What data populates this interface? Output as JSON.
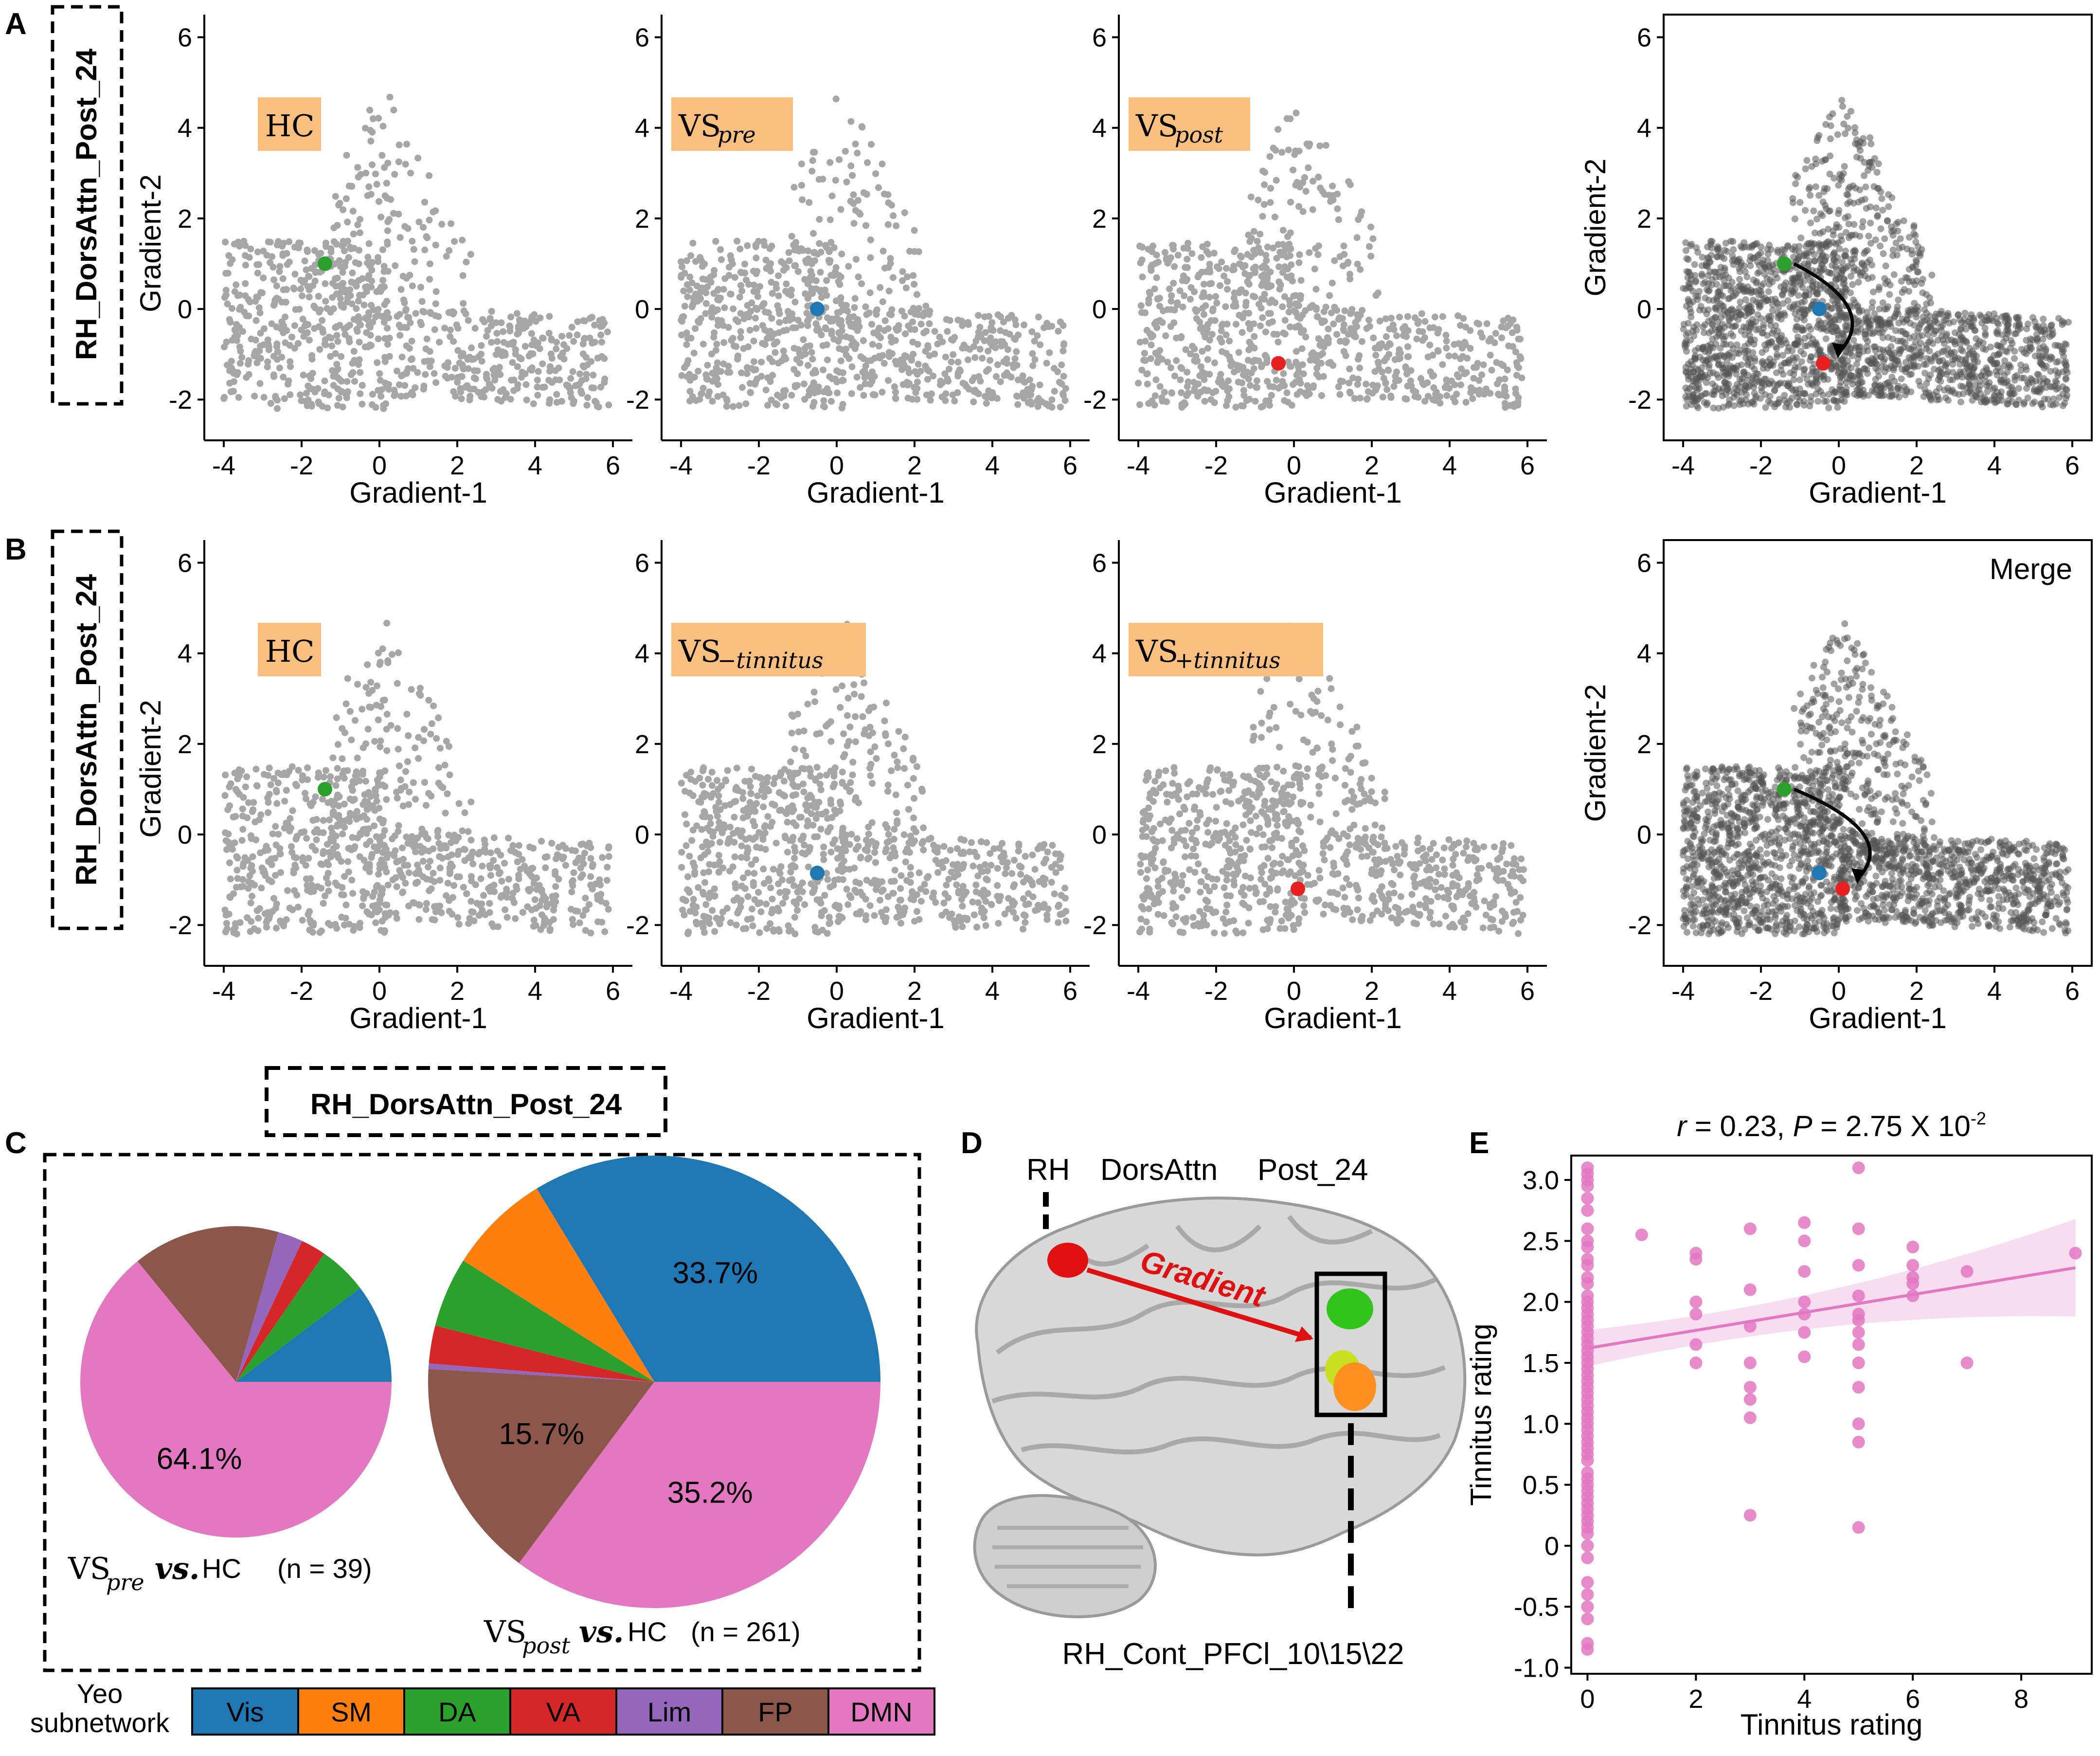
{
  "colors": {
    "cloud": "#a6a6a6",
    "cloud_dark": "#555555",
    "hc": "#2ca02c",
    "pre": "#1f77b4",
    "post": "#e82020",
    "label_bg": "#fbbf80",
    "scatter_pink": "#e377c2"
  },
  "panel_a": {
    "letter": "A",
    "roi_label": "RH_DorsAttn_Post_24",
    "xlabel": "Gradient-1",
    "ylabel": "Gradient-2",
    "xticks": [
      "-4",
      "-2",
      "0",
      "2",
      "4",
      "6"
    ],
    "yticks": [
      "-2",
      "0",
      "2",
      "4",
      "6"
    ],
    "subplots": [
      {
        "label_main": "HC",
        "label_sub": "",
        "marker": {
          "name": "HC",
          "x": -1.4,
          "y": 1.0,
          "color_key": "hc"
        },
        "seed": 11
      },
      {
        "label_main": "VS",
        "label_sub": "pre",
        "marker": {
          "name": "VSpre",
          "x": -0.5,
          "y": 0.0,
          "color_key": "pre"
        },
        "seed": 23
      },
      {
        "label_main": "VS",
        "label_sub": "post",
        "marker": {
          "name": "VSpost",
          "x": -0.4,
          "y": -1.2,
          "color_key": "post"
        },
        "seed": 37
      }
    ],
    "merge": {
      "title": "",
      "points": [
        {
          "name": "HC",
          "x": -1.4,
          "y": 1.0,
          "color_key": "hc"
        },
        {
          "name": "VSpre",
          "x": -0.5,
          "y": 0.0,
          "color_key": "pre"
        },
        {
          "name": "VSpost",
          "x": -0.4,
          "y": -1.2,
          "color_key": "post"
        }
      ],
      "seed": 53
    }
  },
  "panel_b": {
    "letter": "B",
    "roi_label": "RH_DorsAttn_Post_24",
    "xlabel": "Gradient-1",
    "ylabel": "Gradient-2",
    "xticks": [
      "-4",
      "-2",
      "0",
      "2",
      "4",
      "6"
    ],
    "yticks": [
      "-2",
      "0",
      "2",
      "4",
      "6"
    ],
    "subplots": [
      {
        "label_main": "HC",
        "label_sub": "",
        "marker": {
          "name": "HC",
          "x": -1.4,
          "y": 1.0,
          "color_key": "hc"
        },
        "seed": 71
      },
      {
        "label_main": "VS",
        "label_sub": "−tinnitus",
        "marker": {
          "name": "VS-tinnitus",
          "x": -0.5,
          "y": -0.85,
          "color_key": "pre"
        },
        "seed": 83
      },
      {
        "label_main": "VS",
        "label_sub": "+tinnitus",
        "marker": {
          "name": "VS+tinnitus",
          "x": 0.1,
          "y": -1.2,
          "color_key": "post"
        },
        "seed": 97
      }
    ],
    "merge": {
      "title": "Merge",
      "points": [
        {
          "name": "HC",
          "x": -1.4,
          "y": 1.0,
          "color_key": "hc"
        },
        {
          "name": "VS-tinnitus",
          "x": -0.5,
          "y": -0.85,
          "color_key": "pre"
        },
        {
          "name": "VS+tinnitus",
          "x": 0.1,
          "y": -1.2,
          "color_key": "post"
        }
      ],
      "seed": 101
    }
  },
  "panel_c": {
    "letter": "C",
    "roi_label": "RH_DorsAttn_Post_24",
    "pies": [
      {
        "caption_main": "VS",
        "caption_sub": "pre",
        "caption_vs": "vs.",
        "caption_hc": "HC",
        "caption_n": "(n = 39)",
        "slices": [
          {
            "network": "Vis",
            "value": 10.3,
            "label": ""
          },
          {
            "network": "SM",
            "value": 0,
            "label": ""
          },
          {
            "network": "DA",
            "value": 5.1,
            "label": ""
          },
          {
            "network": "VA",
            "value": 2.6,
            "label": ""
          },
          {
            "network": "Lim",
            "value": 2.6,
            "label": ""
          },
          {
            "network": "FP",
            "value": 15.3,
            "label": ""
          },
          {
            "network": "DMN",
            "value": 64.1,
            "label": "64.1%"
          }
        ]
      },
      {
        "caption_main": "VS",
        "caption_sub": "post",
        "caption_vs": "vs.",
        "caption_hc": "HC",
        "caption_n": "(n = 261)",
        "slices": [
          {
            "network": "Vis",
            "value": 33.7,
            "label": "33.7%"
          },
          {
            "network": "SM",
            "value": 7.3,
            "label": ""
          },
          {
            "network": "DA",
            "value": 5.0,
            "label": ""
          },
          {
            "network": "VA",
            "value": 2.7,
            "label": ""
          },
          {
            "network": "Lim",
            "value": 0.4,
            "label": ""
          },
          {
            "network": "FP",
            "value": 15.7,
            "label": "15.7%"
          },
          {
            "network": "DMN",
            "value": 35.2,
            "label": "35.2%"
          }
        ]
      }
    ],
    "legend_title_line1": "Yeo",
    "legend_title_line2": "subnetwork",
    "legend": [
      {
        "name": "Vis",
        "color": "#1f77b4"
      },
      {
        "name": "SM",
        "color": "#ff7f0e"
      },
      {
        "name": "DA",
        "color": "#2ca02c"
      },
      {
        "name": "VA",
        "color": "#d62728"
      },
      {
        "name": "Lim",
        "color": "#9467bd"
      },
      {
        "name": "FP",
        "color": "#8c564b"
      },
      {
        "name": "DMN",
        "color": "#e377c2"
      }
    ]
  },
  "panel_d": {
    "letter": "D",
    "top_label_1": "RH",
    "top_label_2": "DorsAttn",
    "top_label_3": "Post_24",
    "arrow_label": "Gradient",
    "bottom_label": "RH_Cont_PFCl_10\\15\\22"
  },
  "chart_data": [
    {
      "type": "scatter",
      "panel": "A",
      "title": "RH_DorsAttn_Post_24 — HC / VSpre / VSpost / merge",
      "xlabel": "Gradient-1",
      "ylabel": "Gradient-2",
      "xlim": [
        -4.5,
        6.5
      ],
      "ylim": [
        -2.9,
        6.5
      ],
      "series": [
        {
          "name": "HC",
          "x": [
            -1.4
          ],
          "y": [
            1.0
          ]
        },
        {
          "name": "VSpre",
          "x": [
            -0.5
          ],
          "y": [
            0.0
          ]
        },
        {
          "name": "VSpost",
          "x": [
            -0.4
          ],
          "y": [
            -1.2
          ]
        }
      ]
    },
    {
      "type": "scatter",
      "panel": "B",
      "title": "RH_DorsAttn_Post_24 — HC / VS-tinnitus / VS+tinnitus / Merge",
      "xlabel": "Gradient-1",
      "ylabel": "Gradient-2",
      "xlim": [
        -4.5,
        6.5
      ],
      "ylim": [
        -2.9,
        6.5
      ],
      "series": [
        {
          "name": "HC",
          "x": [
            -1.4
          ],
          "y": [
            1.0
          ]
        },
        {
          "name": "VS-tinnitus",
          "x": [
            -0.5
          ],
          "y": [
            -0.85
          ]
        },
        {
          "name": "VS+tinnitus",
          "x": [
            0.1
          ],
          "y": [
            -1.2
          ]
        }
      ]
    },
    {
      "type": "pie",
      "panel": "C",
      "title": "VSpre vs. HC (n = 39)",
      "categories": [
        "Vis",
        "SM",
        "DA",
        "VA",
        "Lim",
        "FP",
        "DMN"
      ],
      "values": [
        10.3,
        0,
        5.1,
        2.6,
        2.6,
        15.3,
        64.1
      ]
    },
    {
      "type": "pie",
      "panel": "C",
      "title": "VSpost vs. HC (n = 261)",
      "categories": [
        "Vis",
        "SM",
        "DA",
        "VA",
        "Lim",
        "FP",
        "DMN"
      ],
      "values": [
        33.7,
        7.3,
        5.0,
        2.7,
        0.4,
        15.7,
        35.2
      ]
    },
    {
      "type": "scatter",
      "panel": "E",
      "title_r": "r",
      "title_r_val": "= 0.23,",
      "title_p": "P",
      "title_p_val": "= 2.75 X 10",
      "title_p_exp": "-2",
      "xlabel": "Tinnitus rating",
      "ylabel": "Tinnitus rating",
      "xlim": [
        -0.3,
        9.3
      ],
      "ylim": [
        -1.05,
        3.2
      ],
      "xticks": [
        "0",
        "2",
        "4",
        "6",
        "8"
      ],
      "yticks": [
        "-1.0",
        "-0.5",
        "0",
        "0.5",
        "1.0",
        "1.5",
        "2.0",
        "2.5",
        "3.0"
      ],
      "x": [
        0,
        0,
        0,
        0,
        0,
        0,
        0,
        0,
        0,
        0,
        0,
        0,
        0,
        0,
        0,
        0,
        0,
        0,
        0,
        0,
        0,
        0,
        0,
        0,
        0,
        0,
        0,
        0,
        0,
        0,
        0,
        0,
        0,
        0,
        0,
        0,
        0,
        0,
        0,
        0,
        0,
        0,
        0,
        0,
        0,
        0,
        0,
        0,
        0,
        0,
        0,
        0,
        0,
        0,
        0,
        0,
        0,
        0,
        0,
        0,
        1,
        2,
        2,
        2,
        2,
        2,
        2,
        3,
        3,
        3,
        3,
        3,
        3,
        3,
        3,
        4,
        4,
        4,
        4,
        4,
        4,
        4,
        5,
        5,
        5,
        5,
        5,
        5,
        5,
        5,
        5,
        5,
        5,
        5,
        5,
        6,
        6,
        6,
        6,
        6,
        7,
        7,
        9
      ],
      "y": [
        3.1,
        3.05,
        3.0,
        2.95,
        2.85,
        2.75,
        2.6,
        2.5,
        2.45,
        2.35,
        2.3,
        2.2,
        2.15,
        2.05,
        2.0,
        1.95,
        1.9,
        1.85,
        1.8,
        1.75,
        1.7,
        1.65,
        1.6,
        1.55,
        1.5,
        1.45,
        1.4,
        1.35,
        1.3,
        1.25,
        1.2,
        1.15,
        1.1,
        1.05,
        1.0,
        0.95,
        0.9,
        0.85,
        0.8,
        0.75,
        0.7,
        0.6,
        0.55,
        0.5,
        0.45,
        0.4,
        0.35,
        0.3,
        0.25,
        0.2,
        0.1,
        0.0,
        -0.1,
        -0.3,
        -0.4,
        -0.5,
        -0.6,
        -0.8,
        -0.85,
        0.15,
        2.55,
        2.4,
        2.35,
        2.0,
        1.9,
        1.65,
        1.5,
        2.6,
        2.1,
        1.8,
        1.5,
        1.3,
        1.2,
        1.05,
        0.25,
        2.65,
        2.5,
        2.25,
        2.0,
        1.9,
        1.75,
        1.55,
        3.1,
        2.6,
        2.3,
        2.05,
        1.9,
        1.85,
        1.75,
        1.65,
        1.5,
        1.3,
        1.0,
        0.85,
        0.15,
        2.45,
        2.3,
        2.2,
        2.15,
        2.05,
        2.25,
        1.5,
        2.4
      ],
      "fit": {
        "x": [
          0,
          9
        ],
        "y": [
          1.62,
          2.28
        ]
      }
    }
  ]
}
